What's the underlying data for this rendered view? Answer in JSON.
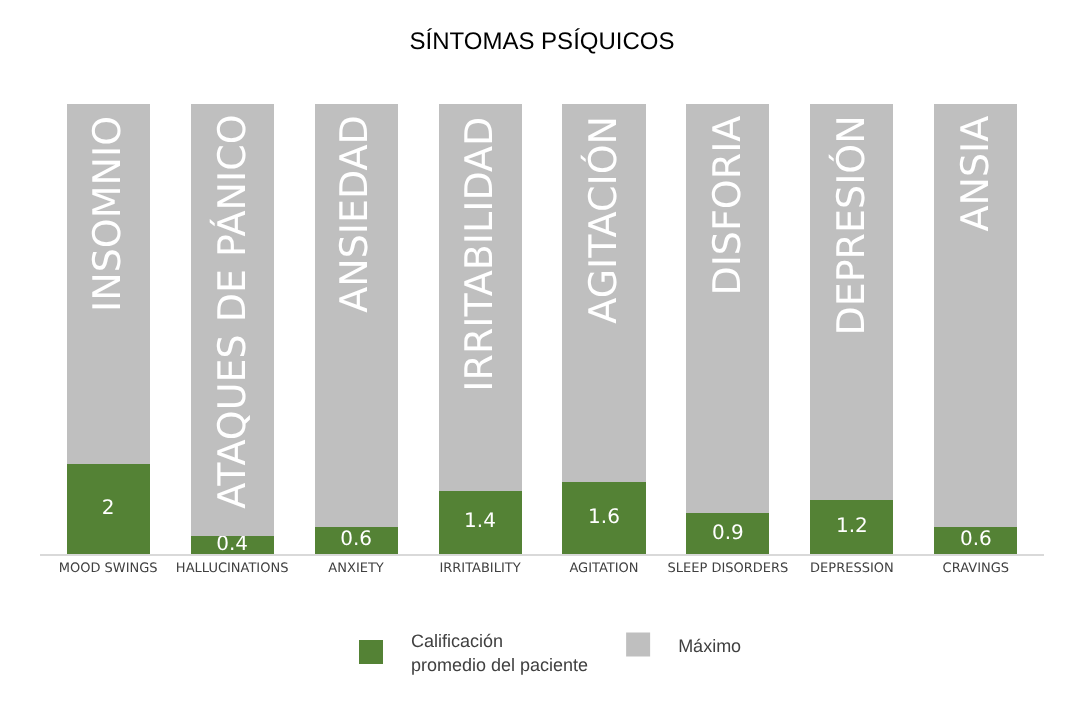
{
  "chart_data": {
    "type": "bar",
    "title": "SÍNTOMAS PSÍQUICOS",
    "stacked": true,
    "legend": "bottom",
    "categories": [
      "MOOD SWINGS",
      "HALLUCINATIONS",
      "ANXIETY",
      "IRRITABILITY",
      "AGITATION",
      "SLEEP DISORDERS",
      "DEPRESSION",
      "CRAVINGS"
    ],
    "series": [
      {
        "name": "Calificación\npromedio del paciente",
        "color": "#548235",
        "values": [
          2,
          0.4,
          0.6,
          1.4,
          1.6,
          0.9,
          1.2,
          0.6
        ],
        "value_labels": [
          "2",
          "0.4",
          "0.6",
          "1.4",
          "1.6",
          "0.9",
          "1.2",
          "0.6"
        ]
      },
      {
        "name": "Máximo",
        "color": "#bfbfbf",
        "values": [
          8,
          9.6,
          9.4,
          8.6,
          8.4,
          9.1,
          8.8,
          9.4
        ],
        "value_labels": [
          "INSOMNIO",
          "ATAQUES DE PÁNICO",
          "ANSIEDAD",
          "IRRITABILIDAD",
          "AGITACIÓN",
          "DISFORIA",
          "DEPRESIÓN",
          "ANSIA"
        ]
      }
    ]
  }
}
